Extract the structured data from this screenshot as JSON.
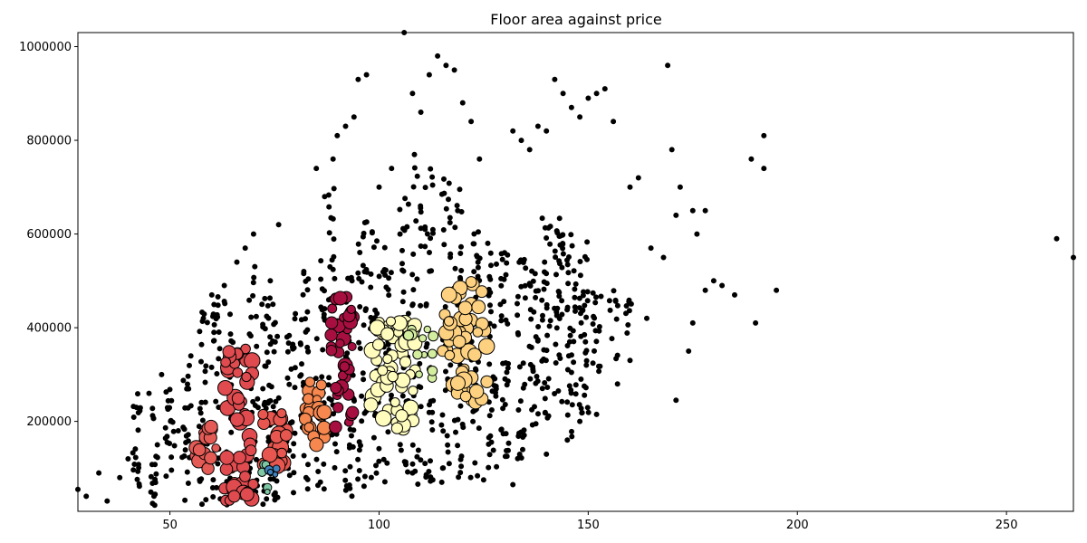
{
  "chart_data": {
    "type": "scatter",
    "title": "Floor area against price",
    "xlabel": "",
    "ylabel": "",
    "xlim": [
      28,
      266
    ],
    "ylim": [
      8000,
      1030000
    ],
    "x_ticks": [
      50,
      100,
      150,
      200,
      250
    ],
    "y_ticks": [
      200000,
      400000,
      600000,
      800000,
      1000000
    ],
    "grid": false,
    "legend": "none",
    "noise_color": "#000000",
    "point_stroke": "#000000",
    "sample_points": [
      [
        28,
        55000
      ],
      [
        30,
        40000
      ],
      [
        33,
        90000
      ],
      [
        35,
        30000
      ],
      [
        38,
        80000
      ],
      [
        40,
        120000
      ],
      [
        42,
        230000
      ],
      [
        45,
        260000
      ],
      [
        47,
        150000
      ],
      [
        48,
        300000
      ],
      [
        52,
        180000
      ],
      [
        55,
        340000
      ],
      [
        58,
        420000
      ],
      [
        60,
        470000
      ],
      [
        63,
        490000
      ],
      [
        66,
        540000
      ],
      [
        68,
        570000
      ],
      [
        70,
        600000
      ],
      [
        72,
        450000
      ],
      [
        74,
        500000
      ],
      [
        76,
        620000
      ],
      [
        78,
        380000
      ],
      [
        80,
        430000
      ],
      [
        82,
        520000
      ],
      [
        85,
        740000
      ],
      [
        87,
        680000
      ],
      [
        89,
        760000
      ],
      [
        90,
        810000
      ],
      [
        92,
        830000
      ],
      [
        94,
        850000
      ],
      [
        95,
        930000
      ],
      [
        97,
        940000
      ],
      [
        100,
        700000
      ],
      [
        103,
        740000
      ],
      [
        105,
        600000
      ],
      [
        108,
        900000
      ],
      [
        110,
        860000
      ],
      [
        112,
        940000
      ],
      [
        114,
        980000
      ],
      [
        116,
        960000
      ],
      [
        118,
        950000
      ],
      [
        120,
        880000
      ],
      [
        122,
        840000
      ],
      [
        124,
        760000
      ],
      [
        126,
        580000
      ],
      [
        130,
        560000
      ],
      [
        132,
        820000
      ],
      [
        134,
        800000
      ],
      [
        136,
        780000
      ],
      [
        138,
        830000
      ],
      [
        140,
        820000
      ],
      [
        142,
        930000
      ],
      [
        144,
        900000
      ],
      [
        146,
        870000
      ],
      [
        148,
        850000
      ],
      [
        150,
        890000
      ],
      [
        152,
        900000
      ],
      [
        154,
        910000
      ],
      [
        156,
        840000
      ],
      [
        160,
        700000
      ],
      [
        162,
        720000
      ],
      [
        165,
        570000
      ],
      [
        168,
        550000
      ],
      [
        169,
        960000
      ],
      [
        170,
        780000
      ],
      [
        171,
        640000
      ],
      [
        172,
        700000
      ],
      [
        175,
        650000
      ],
      [
        176,
        600000
      ],
      [
        178,
        650000
      ],
      [
        180,
        500000
      ],
      [
        182,
        490000
      ],
      [
        185,
        470000
      ],
      [
        189,
        760000
      ],
      [
        190,
        410000
      ],
      [
        192,
        740000
      ],
      [
        192,
        810000
      ],
      [
        195,
        480000
      ],
      [
        171,
        245000
      ],
      [
        174,
        350000
      ],
      [
        175,
        410000
      ],
      [
        178,
        480000
      ],
      [
        262,
        590000
      ],
      [
        266,
        550000
      ],
      [
        106,
        1030000
      ],
      [
        108,
        90000
      ],
      [
        115,
        70000
      ],
      [
        125,
        75000
      ],
      [
        132,
        65000
      ],
      [
        140,
        130000
      ],
      [
        145,
        160000
      ],
      [
        148,
        200000
      ],
      [
        152,
        215000
      ],
      [
        157,
        280000
      ],
      [
        160,
        330000
      ],
      [
        164,
        420000
      ]
    ],
    "noise_columns": [
      {
        "x": 42,
        "y_range": [
          20000,
          260000
        ],
        "count": 18
      },
      {
        "x": 46,
        "y_range": [
          20000,
          240000
        ],
        "count": 18
      },
      {
        "x": 50,
        "y_range": [
          20000,
          280000
        ],
        "count": 20
      },
      {
        "x": 54,
        "y_range": [
          30000,
          320000
        ],
        "count": 22
      },
      {
        "x": 58,
        "y_range": [
          20000,
          440000
        ],
        "count": 30
      },
      {
        "x": 61,
        "y_range": [
          20000,
          470000
        ],
        "count": 30
      },
      {
        "x": 64,
        "y_range": [
          20000,
          460000
        ],
        "count": 30
      },
      {
        "x": 70,
        "y_range": [
          20000,
          540000
        ],
        "count": 34
      },
      {
        "x": 73,
        "y_range": [
          20000,
          480000
        ],
        "count": 34
      },
      {
        "x": 75,
        "y_range": [
          30000,
          460000
        ],
        "count": 30
      },
      {
        "x": 79,
        "y_range": [
          40000,
          420000
        ],
        "count": 26
      },
      {
        "x": 82,
        "y_range": [
          50000,
          520000
        ],
        "count": 30
      },
      {
        "x": 86,
        "y_range": [
          50000,
          560000
        ],
        "count": 30
      },
      {
        "x": 89,
        "y_range": [
          60000,
          740000
        ],
        "count": 34
      },
      {
        "x": 93,
        "y_range": [
          40000,
          560000
        ],
        "count": 34
      },
      {
        "x": 96,
        "y_range": [
          50000,
          650000
        ],
        "count": 34
      },
      {
        "x": 99,
        "y_range": [
          60000,
          620000
        ],
        "count": 34
      },
      {
        "x": 102,
        "y_range": [
          70000,
          600000
        ],
        "count": 34
      },
      {
        "x": 106,
        "y_range": [
          60000,
          700000
        ],
        "count": 34
      },
      {
        "x": 109,
        "y_range": [
          60000,
          800000
        ],
        "count": 36
      },
      {
        "x": 112,
        "y_range": [
          70000,
          760000
        ],
        "count": 36
      },
      {
        "x": 116,
        "y_range": [
          80000,
          720000
        ],
        "count": 36
      },
      {
        "x": 119,
        "y_range": [
          80000,
          720000
        ],
        "count": 36
      },
      {
        "x": 123,
        "y_range": [
          70000,
          660000
        ],
        "count": 36
      },
      {
        "x": 127,
        "y_range": [
          100000,
          600000
        ],
        "count": 34
      },
      {
        "x": 130,
        "y_range": [
          120000,
          560000
        ],
        "count": 34
      },
      {
        "x": 134,
        "y_range": [
          120000,
          560000
        ],
        "count": 30
      },
      {
        "x": 137,
        "y_range": [
          180000,
          540000
        ],
        "count": 30
      },
      {
        "x": 140,
        "y_range": [
          200000,
          640000
        ],
        "count": 34
      },
      {
        "x": 143,
        "y_range": [
          220000,
          660000
        ],
        "count": 36
      },
      {
        "x": 146,
        "y_range": [
          160000,
          600000
        ],
        "count": 36
      },
      {
        "x": 149,
        "y_range": [
          180000,
          600000
        ],
        "count": 34
      },
      {
        "x": 152,
        "y_range": [
          300000,
          500000
        ],
        "count": 16
      },
      {
        "x": 156,
        "y_range": [
          330000,
          480000
        ],
        "count": 10
      },
      {
        "x": 160,
        "y_range": [
          380000,
          480000
        ],
        "count": 8
      }
    ],
    "clusters": [
      {
        "x_range": [
          56,
          61
        ],
        "y_range": [
          90000,
          190000
        ],
        "color": "#e45a55",
        "count": 16,
        "radius": 8
      },
      {
        "x_range": [
          63,
          70
        ],
        "y_range": [
          30000,
          360000
        ],
        "color": "#e04b4f",
        "count": 50,
        "radius": 9
      },
      {
        "x_range": [
          72,
          78
        ],
        "y_range": [
          100000,
          220000
        ],
        "color": "#e8574f",
        "count": 20,
        "radius": 9
      },
      {
        "x_range": [
          72,
          76
        ],
        "y_range": [
          40000,
          110000
        ],
        "color": "#7fc8a5",
        "count": 6,
        "radius": 5
      },
      {
        "x_range": [
          72,
          76
        ],
        "y_range": [
          70000,
          100000
        ],
        "color": "#3f82bd",
        "count": 4,
        "radius": 5
      },
      {
        "x_range": [
          82,
          87
        ],
        "y_range": [
          150000,
          290000
        ],
        "color": "#f6874e",
        "count": 24,
        "radius": 8
      },
      {
        "x_range": [
          88,
          94
        ],
        "y_range": [
          160000,
          470000
        ],
        "color": "#a80f41",
        "count": 40,
        "radius": 8
      },
      {
        "x_range": [
          98,
          109
        ],
        "y_range": [
          180000,
          420000
        ],
        "color": "#fffcbe",
        "count": 60,
        "radius": 9
      },
      {
        "x_range": [
          106,
          113
        ],
        "y_range": [
          280000,
          400000
        ],
        "color": "#d4eea0",
        "count": 14,
        "radius": 6
      },
      {
        "x_range": [
          115,
          126
        ],
        "y_range": [
          240000,
          500000
        ],
        "color": "#fdd180",
        "count": 55,
        "radius": 9
      }
    ]
  }
}
